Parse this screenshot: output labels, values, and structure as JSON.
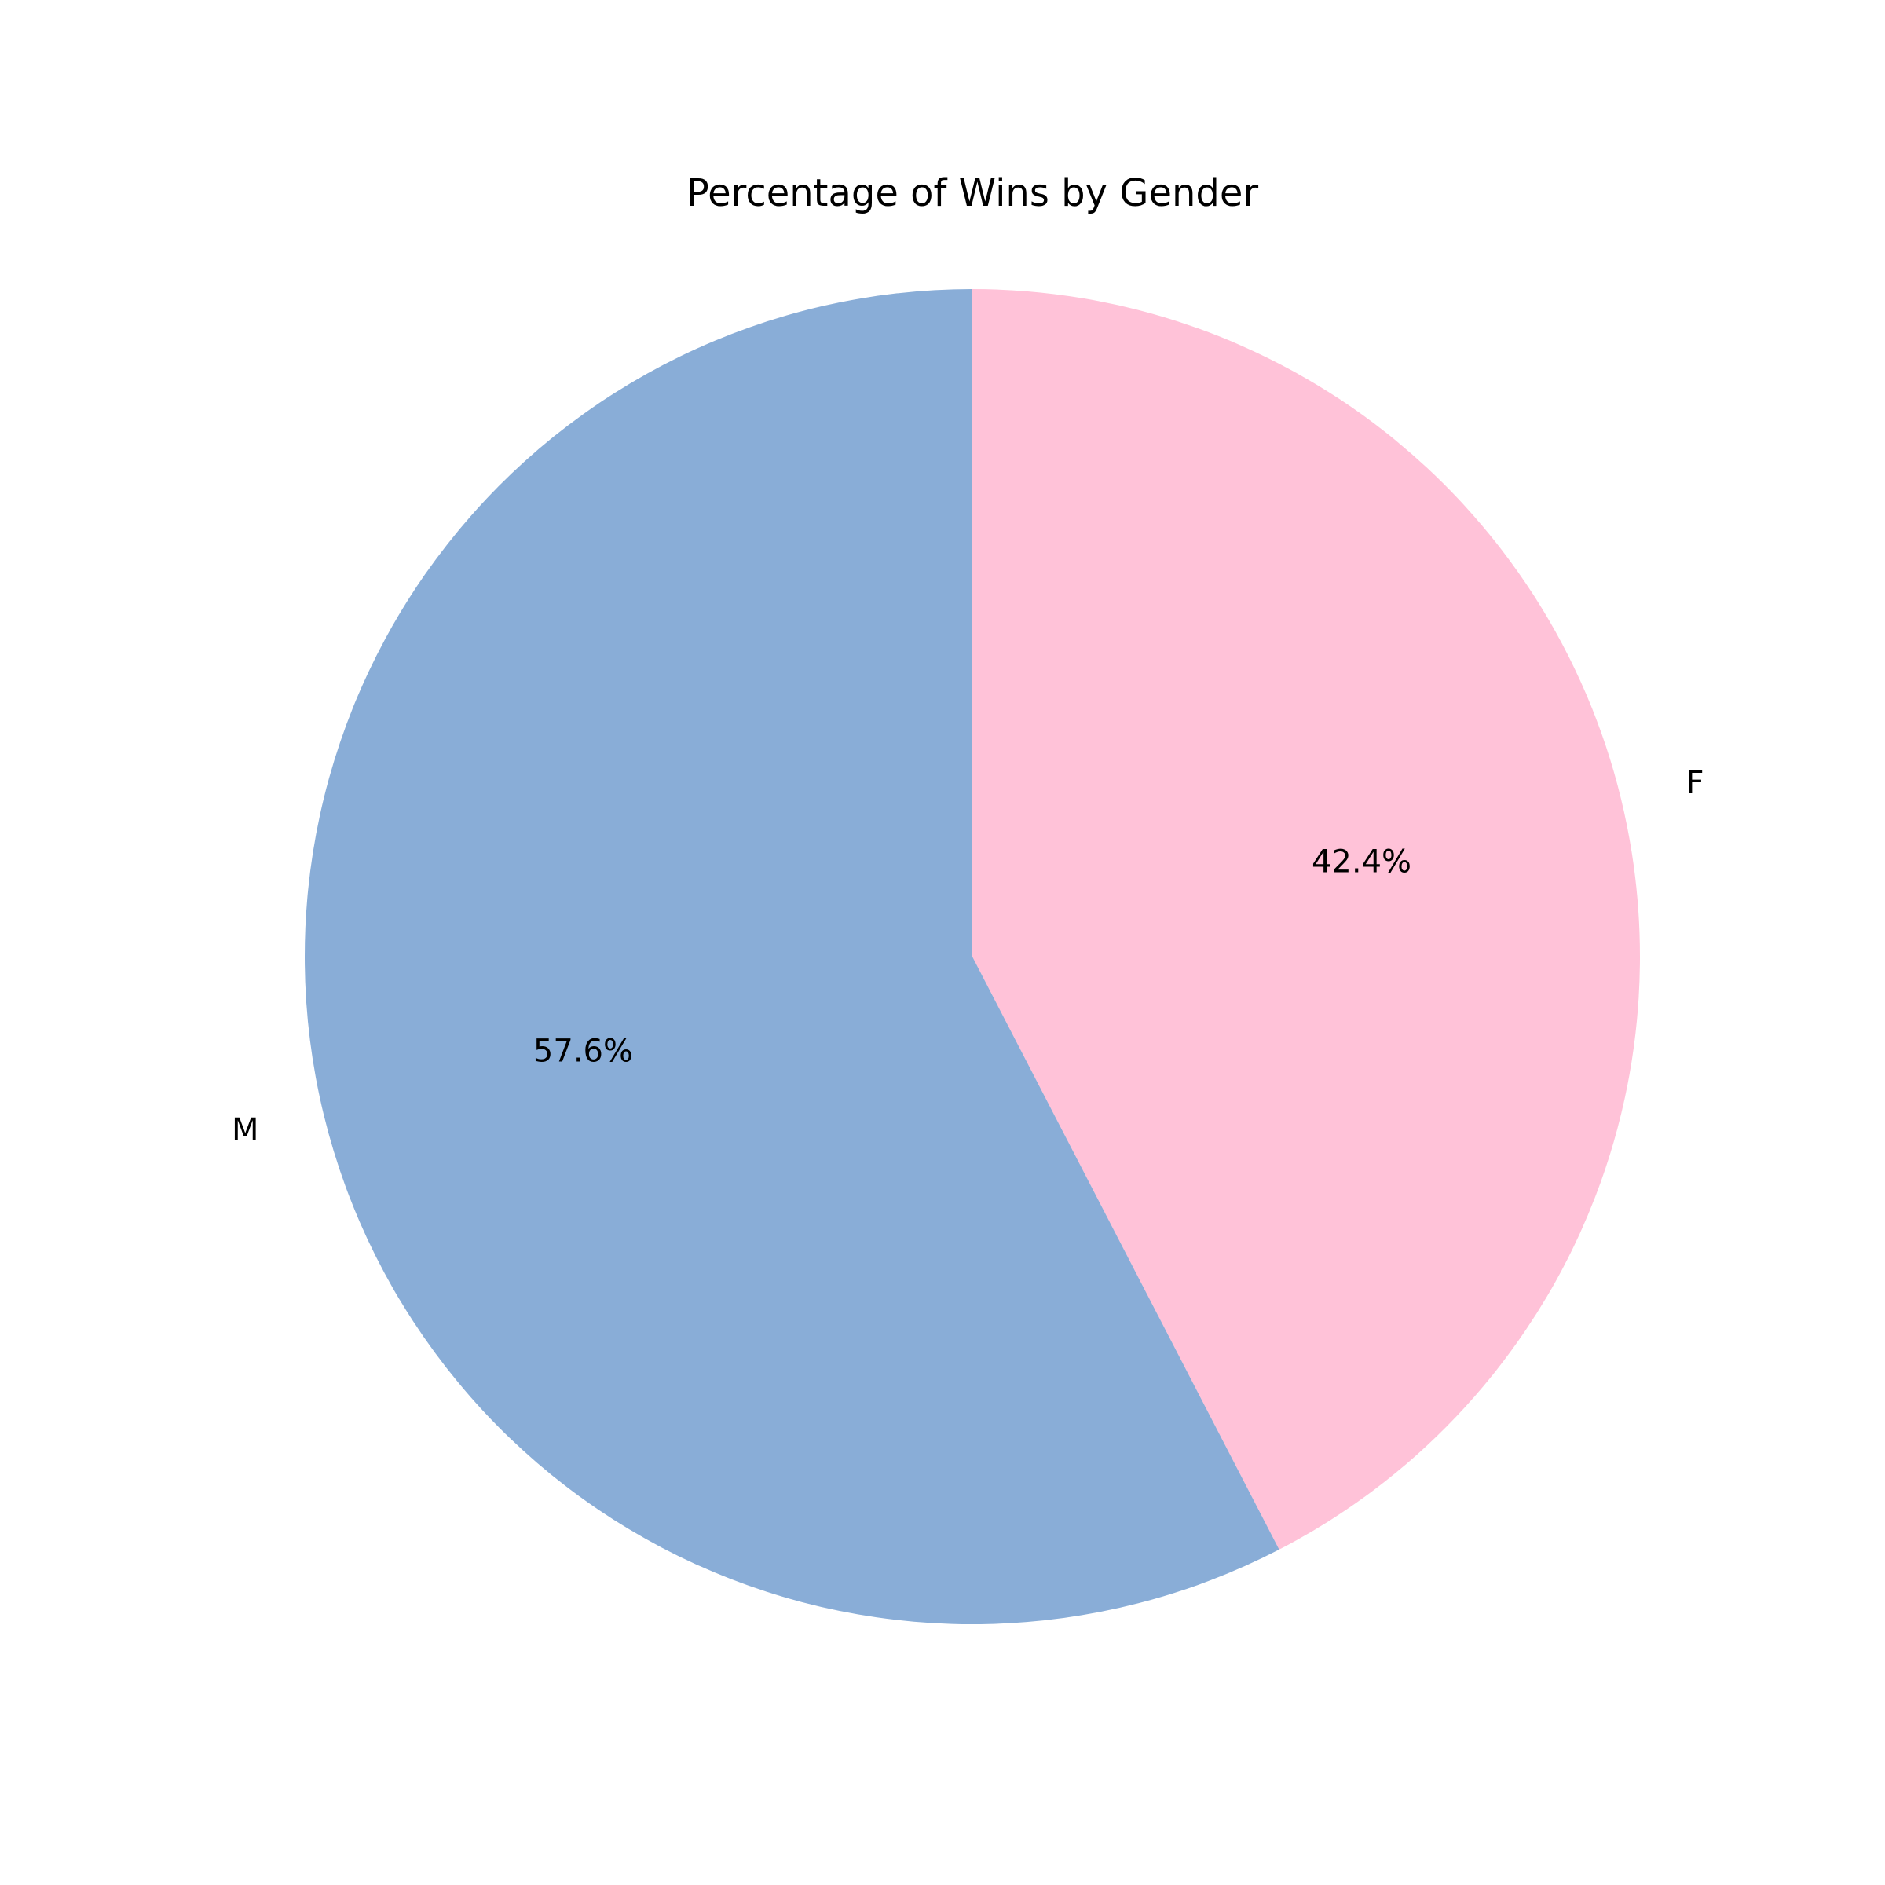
{
  "chart_data": {
    "type": "pie",
    "title": "Percentage of Wins by Gender",
    "slices": [
      {
        "label": "F",
        "value": 42.4,
        "pct_label": "42.4%",
        "color": "#FFC2D8"
      },
      {
        "label": "M",
        "value": 57.6,
        "pct_label": "57.6%",
        "color": "#89ADD7"
      }
    ],
    "start_angle_deg": 90,
    "direction": "clockwise",
    "legend": "none"
  }
}
